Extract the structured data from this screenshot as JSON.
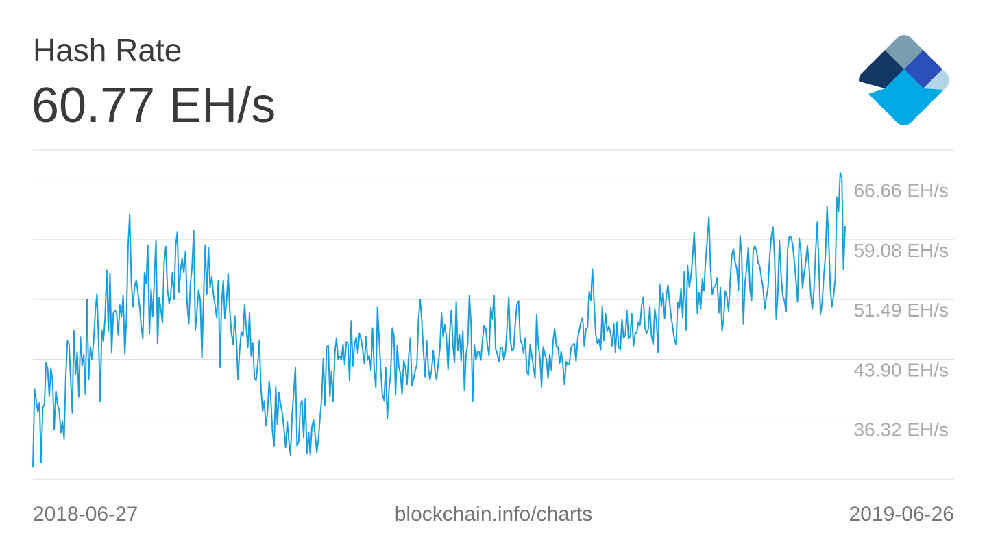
{
  "header": {
    "title": "Hash Rate",
    "current_value": "60.77 EH/s"
  },
  "footer": {
    "start_date": "2018-06-27",
    "source": "blockchain.info/charts",
    "end_date": "2019-06-26"
  },
  "logo": {
    "icon": "blockchain-logo-icon"
  },
  "colors": {
    "line": "#1a9ed9",
    "grid": "#dedede",
    "tick_text": "#a9a9a9",
    "logo_dark": "#123763",
    "logo_grey": "#7b9db0",
    "logo_blue": "#2a4fb9",
    "logo_cyan": "#00a9e3",
    "logo_light": "#b1d5e7"
  },
  "chart_data": {
    "type": "line",
    "x_start": "2018-06-27",
    "x_end": "2019-06-26",
    "ylabel": "",
    "xlabel": "",
    "ylim": [
      28.73,
      70.45
    ],
    "grid": true,
    "yticks": [
      {
        "value": 66.66,
        "label": "66.66 EH/s"
      },
      {
        "value": 59.08,
        "label": "59.08 EH/s"
      },
      {
        "value": 51.49,
        "label": "51.49 EH/s"
      },
      {
        "value": 43.9,
        "label": "43.90 EH/s"
      },
      {
        "value": 36.32,
        "label": "36.32 EH/s"
      }
    ],
    "series": [
      {
        "values": [
          30.2,
          40.1,
          38.7,
          37.2,
          38.4,
          30.8,
          37.8,
          38.2,
          43.5,
          42.7,
          39.2,
          42.8,
          41.2,
          35.0,
          39.9,
          38.2,
          37.5,
          34.6,
          36.1,
          33.8,
          41.7,
          46.3,
          45.9,
          41.4,
          37.1,
          47.6,
          42.0,
          44.8,
          39.1,
          46.7,
          43.1,
          44.5,
          39.5,
          51.5,
          41.3,
          45.5,
          43.9,
          46.2,
          49.9,
          52.2,
          46.5,
          38.6,
          47.6,
          46.2,
          49.2,
          55.2,
          47.5,
          54.8,
          44.8,
          49.7,
          50.1,
          49.8,
          47.0,
          50.8,
          49.3,
          52.0,
          44.6,
          49.1,
          58.1,
          62.3,
          53.8,
          50.6,
          53.1,
          54.0,
          52.4,
          50.7,
          48.2,
          46.5,
          54.9,
          53.5,
          58.4,
          47.1,
          52.8,
          49.3,
          54.1,
          59.0,
          45.9,
          51.7,
          50.2,
          48.6,
          56.3,
          58.2,
          52.8,
          51.0,
          52.0,
          54.9,
          51.5,
          58.3,
          60.1,
          52.4,
          55.3,
          56.7,
          54.9,
          57.6,
          51.0,
          48.4,
          53.6,
          55.6,
          60.2,
          47.6,
          50.0,
          52.7,
          51.4,
          44.1,
          51.8,
          58.4,
          52.2,
          58.1,
          53.0,
          54.4,
          52.2,
          50.8,
          49.2,
          53.9,
          42.9,
          51.0,
          53.9,
          49.1,
          51.3,
          54.8,
          50.0,
          47.2,
          45.8,
          49.4,
          46.4,
          41.4,
          45.0,
          47.4,
          46.8,
          50.8,
          48.0,
          45.4,
          49.8,
          44.3,
          46.0,
          41.6,
          41.2,
          43.3,
          46.3,
          40.2,
          37.3,
          38.6,
          35.5,
          37.2,
          41.1,
          38.9,
          34.7,
          32.9,
          40.4,
          35.6,
          39.7,
          38.1,
          37.1,
          35.1,
          32.7,
          36.0,
          33.5,
          31.8,
          36.9,
          39.8,
          42.9,
          32.9,
          33.5,
          38.1,
          38.7,
          34.0,
          38.9,
          32.0,
          34.6,
          31.8,
          35.3,
          36.2,
          34.3,
          32.1,
          33.7,
          36.5,
          38.9,
          44.0,
          38.1,
          45.4,
          45.7,
          39.2,
          42.4,
          38.6,
          44.7,
          46.6,
          43.9,
          44.3,
          43.8,
          45.8,
          43.3,
          46.1,
          46.0,
          41.2,
          48.8,
          43.1,
          45.8,
          46.7,
          44.7,
          47.2,
          46.4,
          45.1,
          43.4,
          46.8,
          43.8,
          44.4,
          42.5,
          47.9,
          42.7,
          40.3,
          50.5,
          46.7,
          42.5,
          39.4,
          38.7,
          42.9,
          36.4,
          40.1,
          42.0,
          47.9,
          46.9,
          39.4,
          45.6,
          43.0,
          42.1,
          39.5,
          43.7,
          42.9,
          40.7,
          44.2,
          46.6,
          40.6,
          41.4,
          42.5,
          43.2,
          49.1,
          51.5,
          48.8,
          44.8,
          41.7,
          46.3,
          42.8,
          41.3,
          42.5,
          45.0,
          42.5,
          41.3,
          43.3,
          45.2,
          49.8,
          46.7,
          48.3,
          46.7,
          42.6,
          47.3,
          50.1,
          45.7,
          43.5,
          51.2,
          45.0,
          47.0,
          43.7,
          47.5,
          40.0,
          44.5,
          45.9,
          52.0,
          48.5,
          38.6,
          45.8,
          43.8,
          44.9,
          44.8,
          43.8,
          46.3,
          48.2,
          47.8,
          45.7,
          44.4,
          50.5,
          49.0,
          52.0,
          45.2,
          44.6,
          43.6,
          45.4,
          45.4,
          43.8,
          44.9,
          47.8,
          51.8,
          46.3,
          45.0,
          45.2,
          48.5,
          50.9,
          51.3,
          46.4,
          45.9,
          44.7,
          46.6,
          42.3,
          41.9,
          45.8,
          44.4,
          43.0,
          41.5,
          49.6,
          45.8,
          44.1,
          40.4,
          45.5,
          44.6,
          43.8,
          41.5,
          44.5,
          42.5,
          46.2,
          47.8,
          45.6,
          45.5,
          43.4,
          44.9,
          43.2,
          40.7,
          43.6,
          43.2,
          43.4,
          45.4,
          45.7,
          45.9,
          43.6,
          46.5,
          47.6,
          48.7,
          49.2,
          45.6,
          47.7,
          48.0,
          52.5,
          51.3,
          55.4,
          51.1,
          47.1,
          45.9,
          46.4,
          45.1,
          50.6,
          46.3,
          49.7,
          47.5,
          48.1,
          47.3,
          45.6,
          48.4,
          44.8,
          48.6,
          45.5,
          45.1,
          49.0,
          46.6,
          46.9,
          50.1,
          46.5,
          46.8,
          49.7,
          45.6,
          47.2,
          47.3,
          48.6,
          48.2,
          50.8,
          51.8,
          47.9,
          47.2,
          47.7,
          50.6,
          46.9,
          45.8,
          50.3,
          48.8,
          44.8,
          53.4,
          50.6,
          52.4,
          49.1,
          52.0,
          53.3,
          51.2,
          49.3,
          47.9,
          46.4,
          45.8,
          51.1,
          50.4,
          52.9,
          49.2,
          55.0,
          47.6,
          55.8,
          53.1,
          54.3,
          56.8,
          60.0,
          55.8,
          49.7,
          52.4,
          50.3,
          54.1,
          52.6,
          56.5,
          59.0,
          62.0,
          55.3,
          52.1,
          53.0,
          53.3,
          54.2,
          49.8,
          53.0,
          47.5,
          49.1,
          52.6,
          51.8,
          50.0,
          54.0,
          57.2,
          57.9,
          56.2,
          55.4,
          52.7,
          59.6,
          56.8,
          48.4,
          53.7,
          55.5,
          58.1,
          52.8,
          51.3,
          57.7,
          58.3,
          57.7,
          56.1,
          55.7,
          54.2,
          53.0,
          50.3,
          51.7,
          53.0,
          56.9,
          59.4,
          60.7,
          56.9,
          49.0,
          52.2,
          58.9,
          54.5,
          52.0,
          51.3,
          50.0,
          58.0,
          59.5,
          59.4,
          58.5,
          56.5,
          54.0,
          51.2,
          59.3,
          57.7,
          52.9,
          54.8,
          56.2,
          58.3,
          55.8,
          52.3,
          50.3,
          52.6,
          57.4,
          61.3,
          55.9,
          49.6,
          51.1,
          54.5,
          57.1,
          63.3,
          58.8,
          52.8,
          50.6,
          52.0,
          54.1,
          64.5,
          62.6,
          67.6,
          66.9,
          55.3,
          60.8
        ]
      }
    ]
  }
}
